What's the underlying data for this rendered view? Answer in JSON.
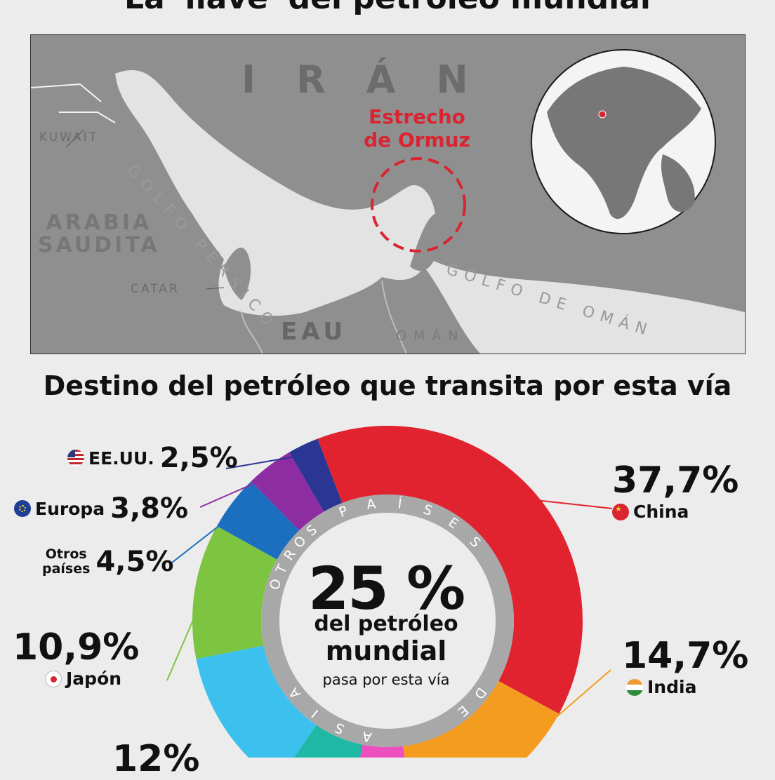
{
  "title": "La 'llave' del petróleo mundial",
  "map": {
    "iran": "IRÁN",
    "kuwait": "KUWAIT",
    "golfo_persico": "GOLFO PÉRSICO",
    "arabia_line1": "ARABIA",
    "arabia_line2": "SAUDITA",
    "catar": "CATAR",
    "eau": "EAU",
    "oman": "OMÁN",
    "golfo_oman": "GOLFO DE OMÁN",
    "strait_line1": "Estrecho",
    "strait_line2": "de Ormuz",
    "colors": {
      "land": "#8f8f8f",
      "water": "#e3e3e3",
      "accent": "#d92531"
    }
  },
  "section_title": "Destino del petróleo que transita por esta vía",
  "center": {
    "value": "25 %",
    "line1": "del petróleo",
    "line2": "mundial",
    "line3": "pasa por esta vía"
  },
  "ring_labels": {
    "otros": "OTROS",
    "paises": "PAÍSES",
    "de": "DE",
    "asia": "ASIA"
  },
  "chart_data": {
    "type": "pie",
    "title": "Destino del petróleo que transita por esta vía",
    "start_angle_deg": -21,
    "slices": [
      {
        "name": "China",
        "value": 37.7,
        "label": "37,7%",
        "color": "#e0232f",
        "flag": "cn-flag-icon"
      },
      {
        "name": "India",
        "value": 14.7,
        "label": "14,7%",
        "color": "#f39c1f",
        "flag": "in-flag-icon"
      },
      {
        "name": "",
        "value": 5.0,
        "label": "",
        "color": "#ee4fc0"
      },
      {
        "name": "",
        "value": 6.2,
        "label": "",
        "color": "#1fb8a4"
      },
      {
        "name": "",
        "value": 12.0,
        "label": "12%",
        "color": "#3cc1ee"
      },
      {
        "name": "Japón",
        "value": 10.9,
        "label": "10,9%",
        "color": "#7dc540",
        "flag": "jp-flag-icon"
      },
      {
        "name": "Otros países",
        "name_line1": "Otros",
        "name_line2": "países",
        "value": 4.5,
        "label": "4,5%",
        "color": "#1c6fbf"
      },
      {
        "name": "Europa",
        "value": 3.8,
        "label": "3,8%",
        "color": "#8e2ca1",
        "flag": "eu-flag-icon"
      },
      {
        "name": "EE.UU.",
        "value": 2.5,
        "label": "2,5%",
        "color": "#2b3593",
        "flag": "us-flag-icon"
      }
    ]
  }
}
